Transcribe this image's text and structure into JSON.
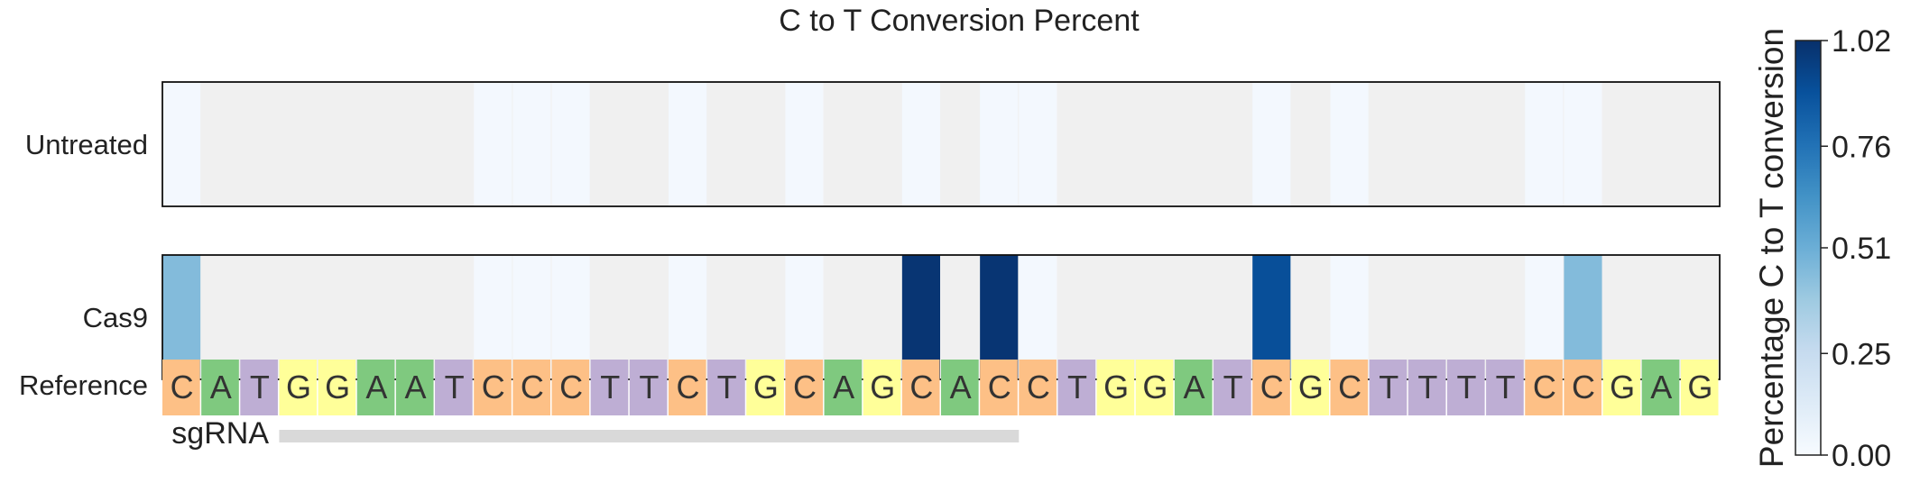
{
  "chart_data": {
    "type": "heatmap",
    "title": "C to T Conversion Percent",
    "rows": [
      "Untreated",
      "Cas9"
    ],
    "reference_label": "Reference",
    "sgrna_label": "sgRNA",
    "sequence": [
      "C",
      "A",
      "T",
      "G",
      "G",
      "A",
      "A",
      "T",
      "C",
      "C",
      "C",
      "T",
      "T",
      "C",
      "T",
      "G",
      "C",
      "A",
      "G",
      "C",
      "A",
      "C",
      "C",
      "T",
      "G",
      "G",
      "A",
      "T",
      "C",
      "G",
      "C",
      "T",
      "T",
      "T",
      "T",
      "C",
      "C",
      "G",
      "A",
      "G"
    ],
    "sgrna_range": [
      3,
      22
    ],
    "series": [
      {
        "name": "Untreated",
        "values": [
          0.02,
          null,
          null,
          null,
          null,
          null,
          null,
          null,
          0.02,
          0.02,
          0.02,
          null,
          null,
          0.02,
          null,
          null,
          0.02,
          null,
          null,
          0.02,
          null,
          0.02,
          0.02,
          null,
          null,
          null,
          null,
          null,
          0.02,
          null,
          0.02,
          null,
          null,
          null,
          null,
          0.02,
          0.02,
          null,
          null,
          null
        ]
      },
      {
        "name": "Cas9",
        "values": [
          0.45,
          null,
          null,
          null,
          null,
          null,
          null,
          null,
          0.02,
          0.02,
          0.02,
          null,
          null,
          0.02,
          null,
          null,
          0.02,
          null,
          null,
          1.0,
          null,
          1.0,
          0.02,
          null,
          null,
          null,
          null,
          null,
          0.9,
          null,
          0.02,
          null,
          null,
          null,
          null,
          0.02,
          0.45,
          null,
          null,
          null
        ]
      }
    ],
    "colorbar": {
      "label": "Percentage C to T conversion",
      "min": 0.0,
      "max": 1.02,
      "ticks": [
        "0.00",
        "0.25",
        "0.51",
        "0.76",
        "1.02"
      ],
      "colormap": "Blues"
    },
    "nucleotide_colors": {
      "A": "#7fc97f",
      "T": "#beaed4",
      "G": "#ffff99",
      "C": "#fdc086"
    },
    "empty_cell_color": "#f0f0f0",
    "grid": false
  }
}
